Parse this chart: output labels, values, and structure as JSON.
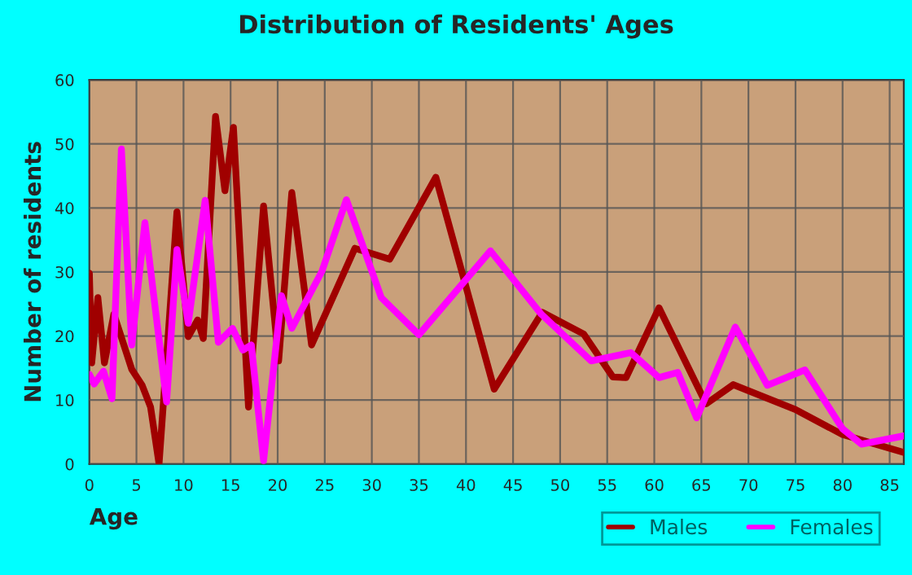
{
  "chart_data": {
    "type": "line",
    "title": "Distribution of Residents' Ages",
    "xlabel": "Age",
    "ylabel": "Number of residents",
    "xlim": [
      0,
      86.5
    ],
    "xticks": [
      0,
      5,
      10,
      15,
      20,
      25,
      30,
      35,
      40,
      45,
      50,
      55,
      60,
      65,
      70,
      75,
      80,
      85
    ],
    "ylim": [
      0,
      60
    ],
    "yticks": [
      0,
      10,
      20,
      30,
      40,
      50,
      60
    ],
    "grid": true,
    "legend": "bottom",
    "series": [
      {
        "name": "Males",
        "color": "#a00000",
        "x": [
          0,
          0.25,
          0.9,
          1.6,
          2.6,
          4.5,
          5.6,
          6.5,
          7.4,
          9.3,
          10.5,
          11.5,
          12.1,
          13.4,
          14.4,
          15.3,
          16.9,
          18.5,
          20.1,
          21.5,
          23.6,
          28.2,
          31.9,
          36.8,
          43,
          48.1,
          52.5,
          55.6,
          57,
          60.5,
          65.5,
          68.4,
          75,
          80,
          86.5
        ],
        "values": [
          29.8,
          15.8,
          26,
          15.8,
          23.4,
          14.8,
          12.3,
          8.9,
          0,
          39.4,
          19.9,
          22.5,
          19.6,
          54.3,
          42.7,
          52.6,
          8.9,
          40.3,
          16.1,
          42.4,
          18.6,
          33.7,
          32,
          44.8,
          11.7,
          23.7,
          20.3,
          13.6,
          13.5,
          24.4,
          9.4,
          12.4,
          8.5,
          4.6,
          1.8
        ]
      },
      {
        "name": "Females",
        "color": "#ff00ff",
        "x": [
          0,
          0.5,
          1.5,
          2.4,
          3.4,
          4.5,
          5.9,
          8.2,
          9.3,
          10.5,
          12.3,
          13.7,
          15.2,
          16.3,
          17.2,
          18.5,
          20.4,
          21.5,
          24.7,
          27.3,
          31,
          35,
          42.6,
          48,
          53.3,
          57.5,
          60.5,
          62.5,
          64.5,
          68.6,
          72,
          76,
          80,
          82,
          86.5
        ],
        "values": [
          14,
          12.5,
          14.5,
          10.2,
          49.2,
          18.6,
          37.7,
          9.7,
          33.5,
          22,
          41.2,
          19,
          21.2,
          17.8,
          18.6,
          0.5,
          26.3,
          21.2,
          30.1,
          41.3,
          26,
          20.2,
          33.3,
          23.4,
          16.1,
          17.4,
          13.5,
          14.3,
          7.2,
          21.4,
          12.3,
          14.7,
          5.5,
          3.1,
          4.4
        ]
      }
    ]
  }
}
